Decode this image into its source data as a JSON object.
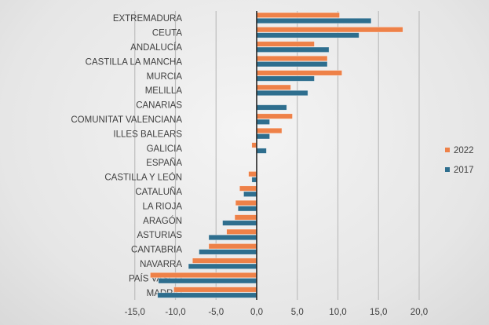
{
  "chart_data": {
    "type": "bar",
    "orientation": "horizontal",
    "categories": [
      "EXTREMADURA",
      "CEUTA",
      "ANDALUCÍA",
      "CASTILLA LA MANCHA",
      "MURCIA",
      "MELILLA",
      "CANARIAS",
      "COMUNITAT VALENCIANA",
      "ILLES BALEARS",
      "GALICIA",
      "ESPAÑA",
      "CASTILLA Y LEÓN",
      "CATALUÑA",
      "LA RIOJA",
      "ARAGÓN",
      "ASTURIAS",
      "CANTABRIA",
      "NAVARRA",
      "PAÍS VASCO",
      "MADRID"
    ],
    "series": [
      {
        "name": "2022",
        "color": "#ee8148",
        "values": [
          10.2,
          18.0,
          7.1,
          8.7,
          10.5,
          4.2,
          0.0,
          4.4,
          3.1,
          -0.6,
          0.0,
          -1.0,
          -2.1,
          -2.6,
          -2.7,
          -3.7,
          -5.9,
          -7.9,
          -13.1,
          -10.2
        ]
      },
      {
        "name": "2017",
        "color": "#2e6e8e",
        "values": [
          14.1,
          12.6,
          8.9,
          8.7,
          7.1,
          6.3,
          3.7,
          1.6,
          1.6,
          1.2,
          0.0,
          -0.6,
          -1.6,
          -2.3,
          -4.2,
          -5.9,
          -7.1,
          -8.4,
          -12.1,
          -12.2
        ]
      }
    ],
    "xlim": [
      -15,
      20
    ],
    "xticks": [
      "-15,0",
      "-10,0",
      "-5,0",
      "0,0",
      "5,0",
      "10,0",
      "15,0",
      "20,0"
    ],
    "xtick_values": [
      -15,
      -10,
      -5,
      0,
      5,
      10,
      15,
      20
    ],
    "grid": "vertical",
    "legend_placement": "right"
  }
}
